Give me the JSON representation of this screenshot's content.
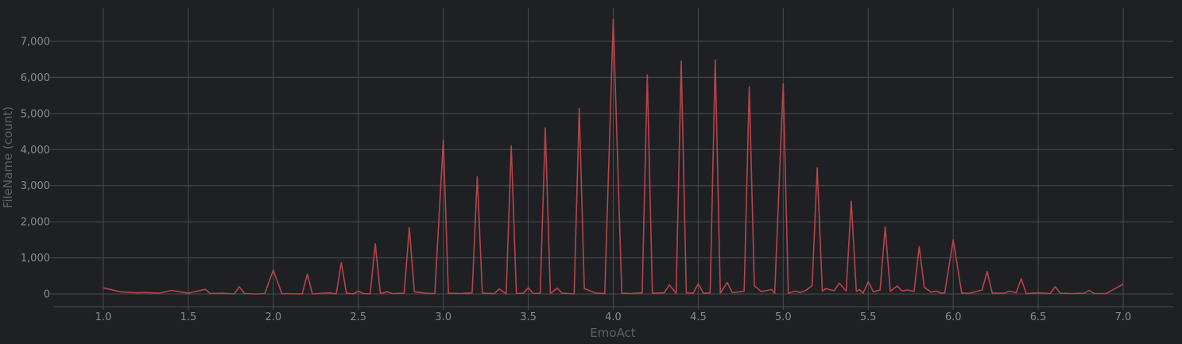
{
  "colors": {
    "background": "#1f2024",
    "grid": "#4a4b50",
    "line": "#b4454a",
    "tick_text": "#8a8b8f",
    "axis_label": "#5f6064"
  },
  "chart_data": {
    "type": "line",
    "xlabel": "EmoAct",
    "ylabel": "FileName (count)",
    "xlim": [
      0.7,
      7.3
    ],
    "ylim": [
      -350,
      7850
    ],
    "grid": true,
    "x_ticks": [
      1.0,
      1.5,
      2.0,
      2.5,
      3.0,
      3.5,
      4.0,
      4.5,
      5.0,
      5.5,
      6.0,
      6.5,
      7.0
    ],
    "x_tick_labels": [
      "1.0",
      "1.5",
      "2.0",
      "2.5",
      "3.0",
      "3.5",
      "4.0",
      "4.5",
      "5.0",
      "5.5",
      "6.0",
      "6.5",
      "7.0"
    ],
    "y_ticks": [
      0,
      1000,
      2000,
      3000,
      4000,
      5000,
      6000,
      7000
    ],
    "y_tick_labels": [
      "0",
      "1,000",
      "2,000",
      "3,000",
      "4,000",
      "5,000",
      "6,000",
      "7,000"
    ],
    "series": [
      {
        "x": [
          1.0,
          1.1,
          1.2,
          1.25,
          1.33,
          1.4,
          1.5,
          1.6,
          1.63,
          1.7,
          1.77,
          1.8,
          1.83,
          1.9,
          1.95,
          2.0,
          2.05,
          2.17,
          2.2,
          2.23,
          2.33,
          2.37,
          2.4,
          2.43,
          2.47,
          2.5,
          2.53,
          2.57,
          2.6,
          2.63,
          2.67,
          2.7,
          2.77,
          2.8,
          2.83,
          2.9,
          2.95,
          3.0,
          3.03,
          3.1,
          3.17,
          3.2,
          3.23,
          3.3,
          3.33,
          3.37,
          3.4,
          3.43,
          3.47,
          3.5,
          3.53,
          3.57,
          3.6,
          3.63,
          3.67,
          3.7,
          3.77,
          3.8,
          3.83,
          3.9,
          3.95,
          4.0,
          4.05,
          4.1,
          4.17,
          4.2,
          4.23,
          4.3,
          4.33,
          4.37,
          4.4,
          4.43,
          4.47,
          4.5,
          4.53,
          4.57,
          4.6,
          4.63,
          4.67,
          4.7,
          4.73,
          4.77,
          4.8,
          4.83,
          4.87,
          4.9,
          4.93,
          4.95,
          5.0,
          5.03,
          5.07,
          5.1,
          5.13,
          5.17,
          5.2,
          5.23,
          5.25,
          5.27,
          5.3,
          5.33,
          5.37,
          5.4,
          5.43,
          5.45,
          5.47,
          5.5,
          5.53,
          5.57,
          5.6,
          5.63,
          5.67,
          5.7,
          5.73,
          5.77,
          5.8,
          5.83,
          5.87,
          5.9,
          5.93,
          5.95,
          6.0,
          6.05,
          6.1,
          6.17,
          6.2,
          6.23,
          6.3,
          6.33,
          6.37,
          6.4,
          6.43,
          6.5,
          6.57,
          6.6,
          6.63,
          6.7,
          6.77,
          6.8,
          6.83,
          6.9,
          7.0
        ],
        "y": [
          170,
          60,
          30,
          40,
          20,
          100,
          20,
          130,
          10,
          20,
          0,
          200,
          10,
          0,
          10,
          660,
          10,
          0,
          550,
          0,
          30,
          0,
          870,
          20,
          0,
          80,
          10,
          0,
          1390,
          10,
          60,
          10,
          20,
          1840,
          60,
          20,
          10,
          4270,
          20,
          10,
          30,
          3250,
          20,
          10,
          140,
          0,
          4100,
          10,
          20,
          170,
          10,
          20,
          4600,
          10,
          160,
          20,
          0,
          5140,
          150,
          20,
          10,
          7600,
          20,
          10,
          30,
          6070,
          20,
          30,
          250,
          20,
          6450,
          30,
          20,
          280,
          20,
          30,
          6480,
          20,
          320,
          40,
          50,
          80,
          5740,
          230,
          70,
          90,
          120,
          20,
          5820,
          20,
          80,
          40,
          90,
          230,
          3500,
          80,
          150,
          120,
          90,
          300,
          80,
          2570,
          70,
          120,
          20,
          340,
          60,
          110,
          1860,
          70,
          220,
          80,
          110,
          70,
          1310,
          180,
          50,
          80,
          20,
          30,
          1500,
          20,
          20,
          110,
          620,
          20,
          20,
          80,
          30,
          420,
          10,
          30,
          10,
          200,
          20,
          10,
          20,
          100,
          10,
          10,
          270
        ]
      }
    ]
  }
}
